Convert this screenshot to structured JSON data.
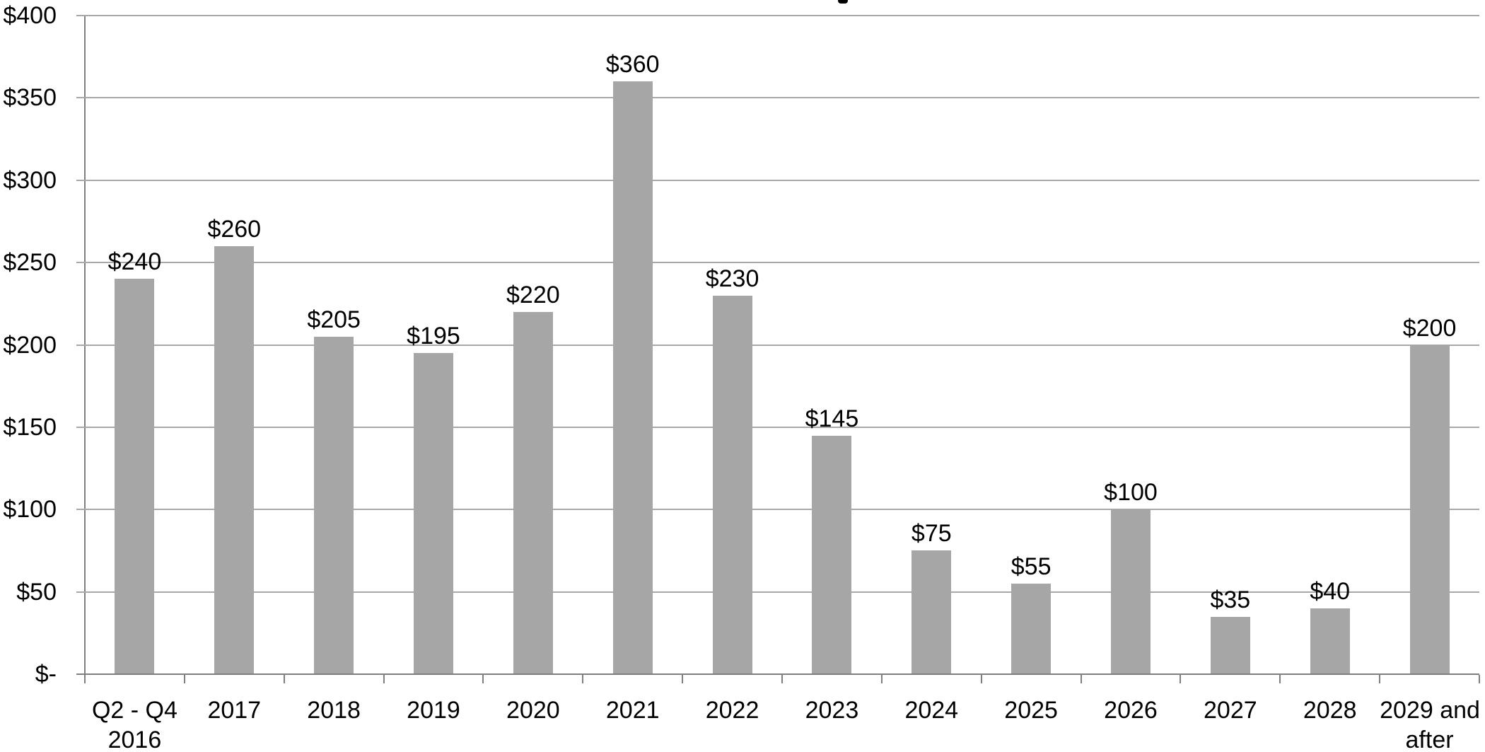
{
  "chart_data": {
    "type": "bar",
    "categories": [
      "Q2 - Q4 2016",
      "2017",
      "2018",
      "2019",
      "2020",
      "2021",
      "2022",
      "2023",
      "2024",
      "2025",
      "2026",
      "2027",
      "2028",
      "2029 and after"
    ],
    "category_label_lines": [
      [
        "Q2 - Q4",
        "2016"
      ],
      [
        "2017"
      ],
      [
        "2018"
      ],
      [
        "2019"
      ],
      [
        "2020"
      ],
      [
        "2021"
      ],
      [
        "2022"
      ],
      [
        "2023"
      ],
      [
        "2024"
      ],
      [
        "2025"
      ],
      [
        "2026"
      ],
      [
        "2027"
      ],
      [
        "2028"
      ],
      [
        "2029 and",
        "after"
      ]
    ],
    "values": [
      240,
      260,
      205,
      195,
      220,
      360,
      230,
      145,
      75,
      55,
      100,
      35,
      40,
      200
    ],
    "value_labels": [
      "$240",
      "$260",
      "$205",
      "$195",
      "$220",
      "$360",
      "$230",
      "$145",
      "$75",
      "$55",
      "$100",
      "$35",
      "$40",
      "$200"
    ],
    "ytick_labels": [
      "$400",
      "$350",
      "$300",
      "$250",
      "$200",
      "$150",
      "$100",
      "$50",
      "$-"
    ],
    "ylim": [
      0,
      400
    ],
    "ystep": 50,
    "grid": true,
    "legend_position": "none",
    "colors": {
      "bar": "#a6a6a6",
      "gridline": "#a8a8a8",
      "axis": "#7f7f7f",
      "text": "#000000"
    }
  }
}
